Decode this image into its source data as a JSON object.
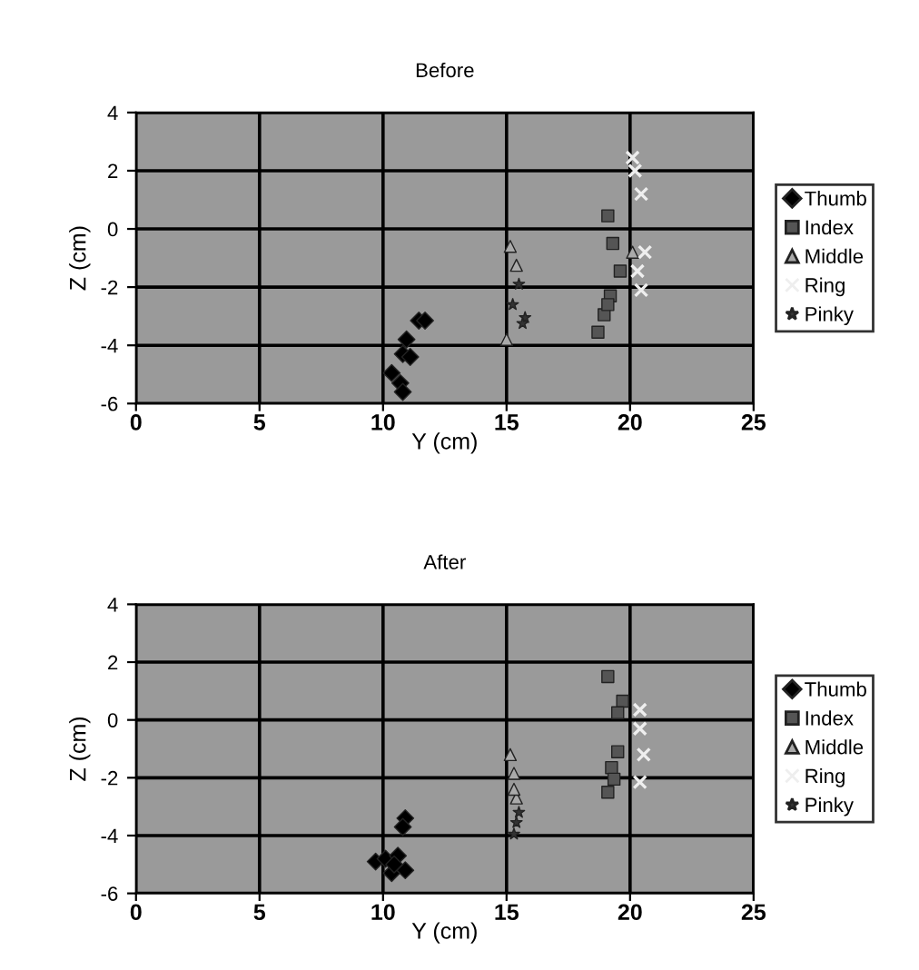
{
  "chart_data": [
    {
      "type": "scatter",
      "title": "Before",
      "xlabel": "Y (cm)",
      "ylabel": "Z (cm)",
      "xlim": [
        0,
        25
      ],
      "xticks": [
        0,
        5,
        10,
        15,
        20,
        25
      ],
      "ylim": [
        -6,
        4
      ],
      "yticks": [
        -6,
        -4,
        -2,
        0,
        2,
        4
      ],
      "grid": true,
      "legend": "right",
      "series": [
        {
          "name": "Thumb",
          "color": "#000000",
          "marker": "diamond",
          "x": [
            11.45,
            11.7,
            10.95,
            10.8,
            11.1,
            10.35,
            10.7,
            10.8
          ],
          "values": [
            -3.15,
            -3.15,
            -3.8,
            -4.3,
            -4.4,
            -4.95,
            -5.3,
            -5.6
          ]
        },
        {
          "name": "Index",
          "color": "#555555",
          "marker": "square",
          "x": [
            19.1,
            19.3,
            19.6,
            19.2,
            18.95,
            18.7,
            19.1
          ],
          "values": [
            0.45,
            -0.5,
            -1.45,
            -2.3,
            -2.95,
            -3.55,
            -2.6
          ]
        },
        {
          "name": "Middle",
          "color": "#aaaaaa",
          "marker": "triangle",
          "x": [
            15.15,
            15.4,
            15.0,
            20.1
          ],
          "values": [
            -0.6,
            -1.25,
            -3.8,
            -0.8
          ]
        },
        {
          "name": "Ring",
          "color": "#eeeeee",
          "marker": "cross",
          "x": [
            20.1,
            20.2,
            20.45,
            20.6,
            20.45,
            20.3
          ],
          "values": [
            2.45,
            2.0,
            1.2,
            -0.8,
            -2.1,
            -1.45
          ]
        },
        {
          "name": "Pinky",
          "color": "#333333",
          "marker": "star",
          "x": [
            15.5,
            15.25,
            15.75,
            15.65
          ],
          "values": [
            -1.9,
            -2.6,
            -3.05,
            -3.25
          ]
        }
      ]
    },
    {
      "type": "scatter",
      "title": "After",
      "xlabel": "Y (cm)",
      "ylabel": "Z (cm)",
      "xlim": [
        0,
        25
      ],
      "xticks": [
        0,
        5,
        10,
        15,
        20,
        25
      ],
      "ylim": [
        -6,
        4
      ],
      "yticks": [
        -6,
        -4,
        -2,
        0,
        2,
        4
      ],
      "grid": true,
      "legend": "right",
      "series": [
        {
          "name": "Thumb",
          "color": "#000000",
          "marker": "diamond",
          "x": [
            10.9,
            10.8,
            9.7,
            10.1,
            10.6,
            10.35,
            10.9,
            10.45
          ],
          "values": [
            -3.4,
            -3.7,
            -4.9,
            -4.8,
            -4.7,
            -5.3,
            -5.2,
            -5.0
          ]
        },
        {
          "name": "Index",
          "color": "#555555",
          "marker": "square",
          "x": [
            19.1,
            19.7,
            19.5,
            19.5,
            19.25,
            19.1,
            19.35
          ],
          "values": [
            1.5,
            0.65,
            0.25,
            -1.1,
            -1.65,
            -2.5,
            -2.05
          ]
        },
        {
          "name": "Middle",
          "color": "#aaaaaa",
          "marker": "triangle",
          "x": [
            15.15,
            15.3,
            15.4,
            15.3
          ],
          "values": [
            -1.2,
            -1.85,
            -2.7,
            -2.4
          ]
        },
        {
          "name": "Ring",
          "color": "#eeeeee",
          "marker": "cross",
          "x": [
            20.4,
            20.4,
            20.55,
            20.4
          ],
          "values": [
            0.35,
            -0.3,
            -1.2,
            -2.15
          ]
        },
        {
          "name": "Pinky",
          "color": "#333333",
          "marker": "star",
          "x": [
            15.4,
            15.3,
            15.5
          ],
          "values": [
            -3.55,
            -3.95,
            -3.2
          ]
        }
      ]
    }
  ]
}
